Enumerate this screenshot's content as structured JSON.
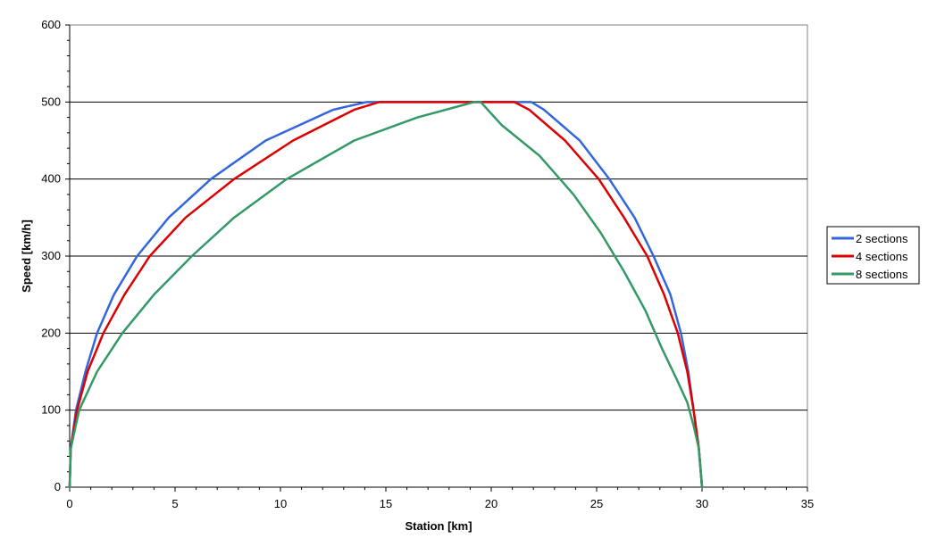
{
  "chart_data": {
    "type": "line",
    "title": "",
    "xlabel": "Station [km]",
    "ylabel": "Speed [km/h]",
    "xlim": [
      0,
      35
    ],
    "ylim": [
      0,
      600
    ],
    "x_ticks": [
      0,
      5,
      10,
      15,
      20,
      25,
      30,
      35
    ],
    "y_ticks": [
      0,
      100,
      200,
      300,
      400,
      500,
      600
    ],
    "grid": "horizontal major lines",
    "legend_position": "right",
    "series": [
      {
        "name": "2 sections",
        "color": "#3366dd",
        "points": [
          [
            0,
            0
          ],
          [
            0.05,
            50
          ],
          [
            0.3,
            100
          ],
          [
            0.75,
            150
          ],
          [
            1.3,
            200
          ],
          [
            2.1,
            250
          ],
          [
            3.2,
            300
          ],
          [
            4.7,
            350
          ],
          [
            6.7,
            400
          ],
          [
            9.3,
            450
          ],
          [
            12.5,
            490
          ],
          [
            14.1,
            500
          ],
          [
            21.9,
            500
          ],
          [
            22.5,
            490
          ],
          [
            24.2,
            450
          ],
          [
            25.6,
            400
          ],
          [
            26.8,
            350
          ],
          [
            27.7,
            300
          ],
          [
            28.5,
            250
          ],
          [
            29.0,
            200
          ],
          [
            29.35,
            150
          ],
          [
            29.6,
            100
          ],
          [
            29.85,
            50
          ],
          [
            30.0,
            0
          ]
        ]
      },
      {
        "name": "4 sections",
        "color": "#dd0000",
        "points": [
          [
            0,
            0
          ],
          [
            0.05,
            50
          ],
          [
            0.35,
            100
          ],
          [
            0.85,
            150
          ],
          [
            1.6,
            200
          ],
          [
            2.6,
            250
          ],
          [
            3.8,
            300
          ],
          [
            5.5,
            350
          ],
          [
            7.8,
            400
          ],
          [
            10.6,
            450
          ],
          [
            13.5,
            490
          ],
          [
            14.7,
            500
          ],
          [
            21.1,
            500
          ],
          [
            21.8,
            490
          ],
          [
            23.5,
            450
          ],
          [
            25.1,
            400
          ],
          [
            26.3,
            350
          ],
          [
            27.4,
            300
          ],
          [
            28.2,
            250
          ],
          [
            28.85,
            200
          ],
          [
            29.3,
            150
          ],
          [
            29.6,
            100
          ],
          [
            29.85,
            50
          ],
          [
            30.0,
            0
          ]
        ]
      },
      {
        "name": "8 sections",
        "color": "#339966",
        "points": [
          [
            0,
            0
          ],
          [
            0.05,
            50
          ],
          [
            0.45,
            100
          ],
          [
            1.3,
            150
          ],
          [
            2.5,
            200
          ],
          [
            4.0,
            250
          ],
          [
            5.8,
            300
          ],
          [
            7.8,
            350
          ],
          [
            10.3,
            400
          ],
          [
            13.5,
            450
          ],
          [
            16.5,
            480
          ],
          [
            19.2,
            500
          ],
          [
            19.5,
            500
          ],
          [
            20.5,
            470
          ],
          [
            22.3,
            430
          ],
          [
            23.9,
            380
          ],
          [
            25.2,
            330
          ],
          [
            26.3,
            280
          ],
          [
            27.3,
            230
          ],
          [
            28.1,
            180
          ],
          [
            28.8,
            140
          ],
          [
            29.3,
            110
          ],
          [
            29.6,
            80
          ],
          [
            29.85,
            50
          ],
          [
            30.0,
            0
          ]
        ]
      }
    ]
  }
}
